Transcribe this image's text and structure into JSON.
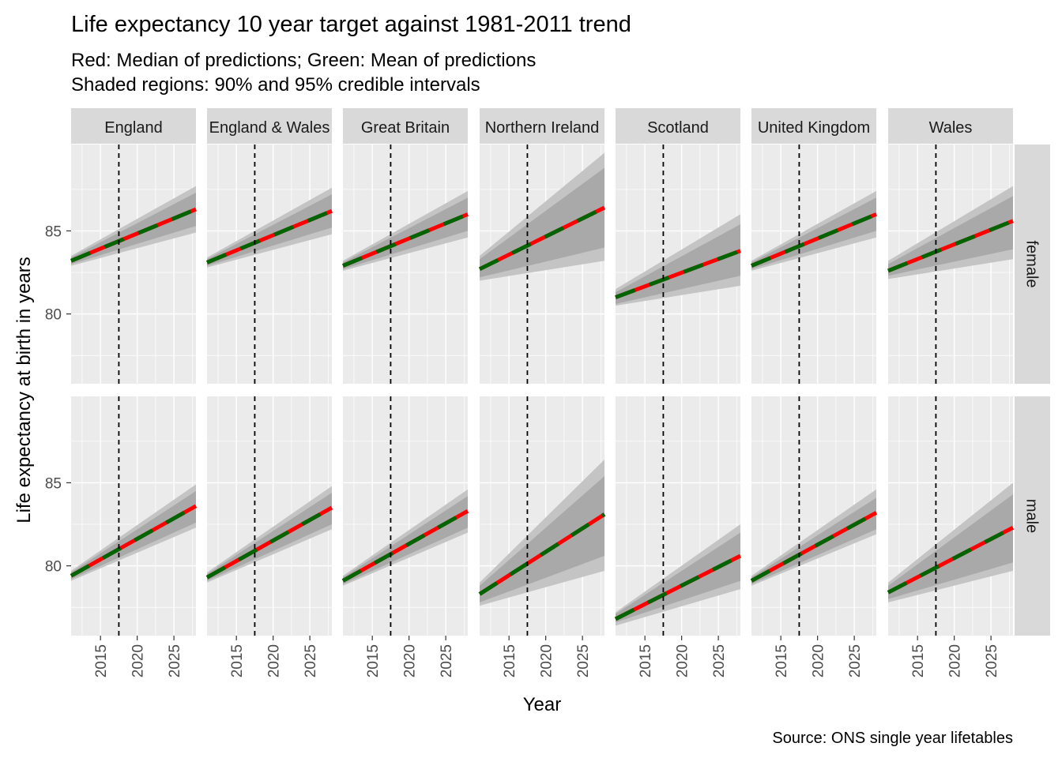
{
  "chart_data": {
    "type": "line",
    "title": "Life expectancy 10 year target against 1981-2011 trend",
    "subtitle_lines": [
      "Red: Median of predictions; Green: Mean of predictions",
      "Shaded regions: 90% and 95% credible intervals"
    ],
    "xlabel": "Year",
    "ylabel": "Life expectancy at birth in years",
    "caption": "Source: ONS single year lifetables",
    "xlim": [
      2011,
      2028
    ],
    "xticks": [
      2015,
      2020,
      2025
    ],
    "ylim": [
      75.8,
      90.2
    ],
    "yticks": [
      80,
      85
    ],
    "vline_x": 2017.5,
    "colors": {
      "panel_bg": "#ebebeb",
      "grid": "#ffffff",
      "strip_bg": "#d9d9d9",
      "band95": "#c4c4c4",
      "band90": "#a9a9a9",
      "median": "#ff0000",
      "mean": "#006400"
    },
    "columns": [
      "England",
      "England & Wales",
      "Great Britain",
      "Northern Ireland",
      "Scotland",
      "United Kingdom",
      "Wales"
    ],
    "rows": [
      "female",
      "male"
    ],
    "x_start": 2011,
    "x_end": 2028,
    "panels": [
      {
        "column": "England",
        "row": "female",
        "y_start": 83.2,
        "y_end": 86.3,
        "band90_start": [
          83.0,
          83.4
        ],
        "band90_end": [
          85.3,
          87.3
        ],
        "band95_start": [
          82.9,
          83.5
        ],
        "band95_end": [
          84.9,
          87.7
        ]
      },
      {
        "column": "England & Wales",
        "row": "female",
        "y_start": 83.1,
        "y_end": 86.2,
        "band90_start": [
          82.9,
          83.3
        ],
        "band90_end": [
          85.2,
          87.2
        ],
        "band95_start": [
          82.8,
          83.4
        ],
        "band95_end": [
          84.8,
          87.6
        ]
      },
      {
        "column": "Great Britain",
        "row": "female",
        "y_start": 82.9,
        "y_end": 86.0,
        "band90_start": [
          82.7,
          83.1
        ],
        "band90_end": [
          85.0,
          87.0
        ],
        "band95_start": [
          82.6,
          83.2
        ],
        "band95_end": [
          84.6,
          87.4
        ]
      },
      {
        "column": "Northern Ireland",
        "row": "female",
        "y_start": 82.7,
        "y_end": 86.4,
        "band90_start": [
          82.2,
          83.3
        ],
        "band90_end": [
          84.0,
          88.8
        ],
        "band95_start": [
          82.0,
          83.5
        ],
        "band95_end": [
          83.2,
          89.7
        ]
      },
      {
        "column": "Scotland",
        "row": "female",
        "y_start": 81.0,
        "y_end": 83.8,
        "band90_start": [
          80.6,
          81.3
        ],
        "band90_end": [
          82.3,
          85.4
        ],
        "band95_start": [
          80.5,
          81.5
        ],
        "band95_end": [
          81.7,
          86.0
        ]
      },
      {
        "column": "United Kingdom",
        "row": "female",
        "y_start": 82.9,
        "y_end": 86.0,
        "band90_start": [
          82.7,
          83.1
        ],
        "band90_end": [
          85.0,
          87.0
        ],
        "band95_start": [
          82.6,
          83.2
        ],
        "band95_end": [
          84.6,
          87.4
        ]
      },
      {
        "column": "Wales",
        "row": "female",
        "y_start": 82.6,
        "y_end": 85.6,
        "band90_start": [
          82.3,
          83.0
        ],
        "band90_end": [
          83.9,
          87.1
        ],
        "band95_start": [
          82.1,
          83.2
        ],
        "band95_end": [
          83.3,
          87.7
        ]
      },
      {
        "column": "England",
        "row": "male",
        "y_start": 79.4,
        "y_end": 83.6,
        "band90_start": [
          79.2,
          79.6
        ],
        "band90_end": [
          82.6,
          84.5
        ],
        "band95_start": [
          79.1,
          79.7
        ],
        "band95_end": [
          82.3,
          84.9
        ]
      },
      {
        "column": "England & Wales",
        "row": "male",
        "y_start": 79.3,
        "y_end": 83.5,
        "band90_start": [
          79.1,
          79.5
        ],
        "band90_end": [
          82.5,
          84.4
        ],
        "band95_start": [
          79.0,
          79.6
        ],
        "band95_end": [
          82.2,
          84.8
        ]
      },
      {
        "column": "Great Britain",
        "row": "male",
        "y_start": 79.1,
        "y_end": 83.3,
        "band90_start": [
          78.9,
          79.3
        ],
        "band90_end": [
          82.3,
          84.2
        ],
        "band95_start": [
          78.8,
          79.4
        ],
        "band95_end": [
          82.0,
          84.6
        ]
      },
      {
        "column": "Northern Ireland",
        "row": "male",
        "y_start": 78.3,
        "y_end": 83.1,
        "band90_start": [
          77.8,
          78.8
        ],
        "band90_end": [
          80.6,
          85.4
        ],
        "band95_start": [
          77.6,
          79.0
        ],
        "band95_end": [
          79.7,
          86.4
        ]
      },
      {
        "column": "Scotland",
        "row": "male",
        "y_start": 76.8,
        "y_end": 80.6,
        "band90_start": [
          76.6,
          77.1
        ],
        "band90_end": [
          79.1,
          82.0
        ],
        "band95_start": [
          76.4,
          77.2
        ],
        "band95_end": [
          78.6,
          82.5
        ]
      },
      {
        "column": "United Kingdom",
        "row": "male",
        "y_start": 79.1,
        "y_end": 83.2,
        "band90_start": [
          78.9,
          79.3
        ],
        "band90_end": [
          82.2,
          84.1
        ],
        "band95_start": [
          78.8,
          79.4
        ],
        "band95_end": [
          81.9,
          84.6
        ]
      },
      {
        "column": "Wales",
        "row": "male",
        "y_start": 78.4,
        "y_end": 82.3,
        "band90_start": [
          78.0,
          78.8
        ],
        "band90_end": [
          80.2,
          84.3
        ],
        "band95_start": [
          77.8,
          79.0
        ],
        "band95_end": [
          79.7,
          85.0
        ]
      }
    ]
  }
}
